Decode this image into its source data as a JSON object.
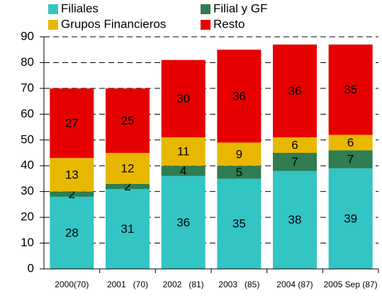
{
  "chart_data": {
    "type": "stacked_bar",
    "categories": [
      "2000(70)",
      "2001   (70)",
      "2002   (81)",
      "2003   (85)",
      "2004 (87)",
      "2005 Sep (87)"
    ],
    "series": [
      {
        "name": "Filiales",
        "color": "#33c4c4",
        "values": [
          28,
          31,
          36,
          35,
          38,
          39
        ]
      },
      {
        "name": "Filial y GF",
        "color": "#2f7d50",
        "values": [
          2,
          2,
          4,
          5,
          7,
          7
        ]
      },
      {
        "name": "Grupos Financieros",
        "color": "#e8b800",
        "values": [
          13,
          12,
          11,
          9,
          6,
          6
        ]
      },
      {
        "name": "Resto",
        "color": "#e60000",
        "values": [
          27,
          25,
          30,
          36,
          36,
          35
        ]
      }
    ],
    "ylim": [
      0,
      90
    ],
    "yticks": [
      0,
      10,
      20,
      30,
      40,
      50,
      60,
      70,
      80,
      90
    ],
    "grid": true
  }
}
